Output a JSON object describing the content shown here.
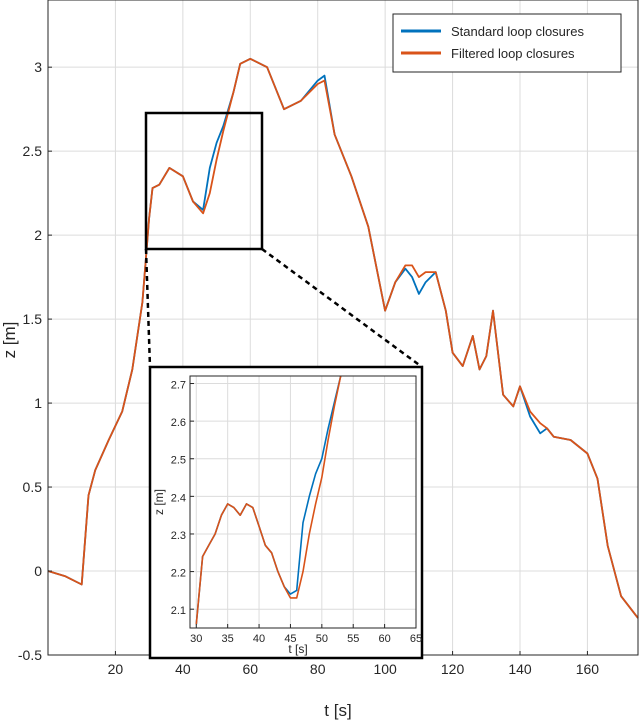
{
  "chart_data": [
    {
      "type": "line",
      "title": "",
      "xlabel": "t [s]",
      "ylabel": "z [m]",
      "xlim": [
        0,
        175
      ],
      "ylim": [
        -0.5,
        3.4
      ],
      "xticks": [
        20,
        40,
        60,
        80,
        100,
        120,
        140,
        160
      ],
      "yticks": [
        -0.5,
        0,
        0.5,
        1,
        1.5,
        2,
        2.5,
        3
      ],
      "grid": true,
      "legend": "top-right",
      "series": [
        {
          "name": "Standard loop closures",
          "color": "#0072BD",
          "x": [
            0,
            5,
            10,
            12,
            14,
            18,
            22,
            25,
            28,
            30,
            31,
            33,
            36,
            40,
            43,
            46,
            48,
            50,
            52,
            55,
            57,
            60,
            65,
            70,
            75,
            80,
            82,
            85,
            90,
            95,
            100,
            103,
            106,
            108,
            110,
            112,
            115,
            118,
            120,
            123,
            126,
            128,
            130,
            132,
            135,
            138,
            140,
            143,
            146,
            148,
            150,
            155,
            160,
            163,
            166,
            170,
            175
          ],
          "y": [
            0,
            -0.03,
            -0.08,
            0.45,
            0.6,
            0.78,
            0.95,
            1.2,
            1.6,
            2.1,
            2.28,
            2.3,
            2.4,
            2.35,
            2.2,
            2.15,
            2.4,
            2.55,
            2.65,
            2.85,
            3.02,
            3.05,
            3.0,
            2.75,
            2.8,
            2.92,
            2.95,
            2.6,
            2.35,
            2.05,
            1.55,
            1.72,
            1.8,
            1.75,
            1.65,
            1.72,
            1.78,
            1.55,
            1.3,
            1.22,
            1.4,
            1.2,
            1.28,
            1.55,
            1.05,
            0.98,
            1.1,
            0.92,
            0.82,
            0.85,
            0.8,
            0.78,
            0.7,
            0.55,
            0.15,
            -0.15,
            -0.28
          ]
        },
        {
          "name": "Filtered loop closures",
          "color": "#D95319",
          "x": [
            0,
            5,
            10,
            12,
            14,
            18,
            22,
            25,
            28,
            30,
            31,
            33,
            36,
            40,
            43,
            46,
            48,
            50,
            52,
            55,
            57,
            60,
            65,
            70,
            75,
            80,
            82,
            85,
            90,
            95,
            100,
            103,
            106,
            108,
            110,
            112,
            115,
            118,
            120,
            123,
            126,
            128,
            130,
            132,
            135,
            138,
            140,
            143,
            146,
            148,
            150,
            155,
            160,
            163,
            166,
            170,
            175
          ],
          "y": [
            0,
            -0.03,
            -0.08,
            0.45,
            0.6,
            0.78,
            0.95,
            1.2,
            1.6,
            2.1,
            2.28,
            2.3,
            2.4,
            2.35,
            2.2,
            2.13,
            2.25,
            2.45,
            2.62,
            2.85,
            3.02,
            3.05,
            3.0,
            2.75,
            2.8,
            2.9,
            2.92,
            2.6,
            2.35,
            2.05,
            1.55,
            1.72,
            1.82,
            1.82,
            1.75,
            1.78,
            1.78,
            1.55,
            1.3,
            1.22,
            1.4,
            1.2,
            1.28,
            1.55,
            1.05,
            0.98,
            1.1,
            0.95,
            0.88,
            0.85,
            0.8,
            0.78,
            0.7,
            0.55,
            0.15,
            -0.15,
            -0.28
          ]
        }
      ]
    },
    {
      "type": "line",
      "title": "",
      "xlabel": "t [s]",
      "ylabel": "z [m]",
      "xlim": [
        29,
        65
      ],
      "ylim": [
        2.05,
        2.72
      ],
      "xticks": [
        30,
        35,
        40,
        45,
        50,
        55,
        60,
        65
      ],
      "yticks": [
        2.1,
        2.2,
        2.3,
        2.4,
        2.5,
        2.6,
        2.7
      ],
      "grid": true,
      "series": [
        {
          "name": "Standard loop closures",
          "color": "#0072BD",
          "x": [
            30,
            31,
            32,
            33,
            34,
            35,
            36,
            37,
            38,
            39,
            40,
            41,
            42,
            43,
            44,
            45,
            46,
            47,
            48,
            49,
            50,
            51,
            52,
            53
          ],
          "y": [
            2.06,
            2.24,
            2.27,
            2.3,
            2.35,
            2.38,
            2.37,
            2.35,
            2.38,
            2.37,
            2.32,
            2.27,
            2.25,
            2.2,
            2.16,
            2.14,
            2.15,
            2.33,
            2.4,
            2.46,
            2.5,
            2.58,
            2.65,
            2.72
          ]
        },
        {
          "name": "Filtered loop closures",
          "color": "#D95319",
          "x": [
            30,
            31,
            32,
            33,
            34,
            35,
            36,
            37,
            38,
            39,
            40,
            41,
            42,
            43,
            44,
            45,
            46,
            47,
            48,
            49,
            50,
            51,
            52,
            53
          ],
          "y": [
            2.06,
            2.24,
            2.27,
            2.3,
            2.35,
            2.38,
            2.37,
            2.35,
            2.38,
            2.37,
            2.32,
            2.27,
            2.25,
            2.2,
            2.16,
            2.13,
            2.13,
            2.2,
            2.3,
            2.38,
            2.45,
            2.55,
            2.64,
            2.72
          ]
        }
      ]
    }
  ]
}
